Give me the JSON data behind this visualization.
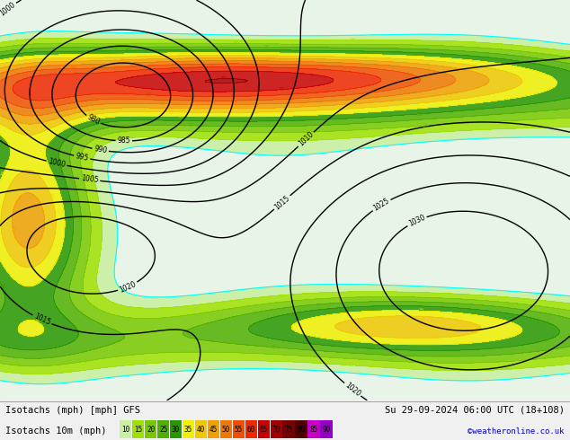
{
  "title_left": "Isotachs (mph) [mph] GFS",
  "title_right": "Su 29-09-2024 06:00 UTC (18+108)",
  "subtitle_left": "Isotachs 10m (mph)",
  "copyright": "©weatheronline.co.uk",
  "legend_values": [
    10,
    15,
    20,
    25,
    30,
    35,
    40,
    45,
    50,
    55,
    60,
    65,
    70,
    75,
    80,
    85,
    90
  ],
  "legend_colors": [
    "#c8f0a0",
    "#a0e000",
    "#78c800",
    "#50b000",
    "#289800",
    "#f0f000",
    "#f0c800",
    "#f0a000",
    "#f07800",
    "#f05000",
    "#f02800",
    "#c80000",
    "#a00000",
    "#780000",
    "#500000",
    "#c800c8",
    "#9600c8"
  ],
  "bg_color": "#f0f0f0",
  "map_bg": "#e8f4e8",
  "sea_color": "#d8eef8",
  "figure_width": 6.34,
  "figure_height": 4.9,
  "dpi": 100
}
